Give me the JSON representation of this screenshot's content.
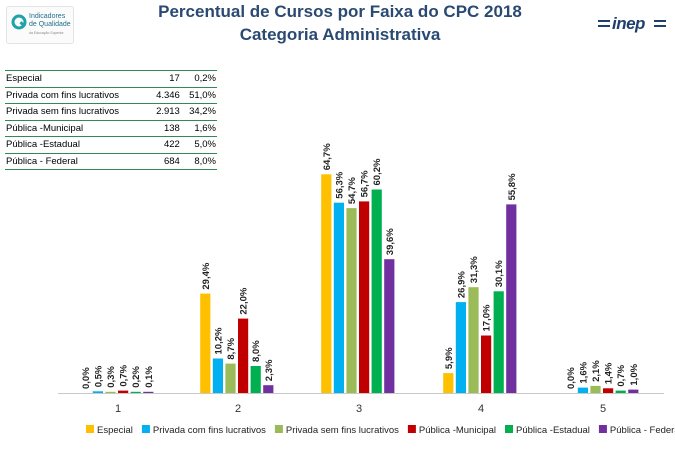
{
  "header": {
    "title_line1": "Percentual de Cursos por Faixa do CPC 2018",
    "title_line2": "Categoria Administrativa",
    "logo_text_line1": "Indicadores",
    "logo_text_line2": "de Qualidade",
    "logo_subtext": "da Educação Superior",
    "inep_logo_text": "inep"
  },
  "table": {
    "rows": [
      {
        "label": "Especial",
        "count": "17",
        "pct": "0,2%"
      },
      {
        "label": "Privada com fins lucrativos",
        "count": "4.346",
        "pct": "51,0%"
      },
      {
        "label": "Privada sem fins lucrativos",
        "count": "2.913",
        "pct": "34,2%"
      },
      {
        "label": "Pública -Municipal",
        "count": "138",
        "pct": "1,6%"
      },
      {
        "label": "Pública -Estadual",
        "count": "422",
        "pct": "5,0%"
      },
      {
        "label": "Pública - Federal",
        "count": "684",
        "pct": "8,0%"
      }
    ]
  },
  "chart_data": {
    "type": "bar",
    "title": "Percentual de Cursos por Faixa do CPC 2018",
    "subtitle": "Categoria Administrativa",
    "xlabel": "",
    "ylabel": "",
    "ylim": [
      0,
      70
    ],
    "categories": [
      "1",
      "2",
      "3",
      "4",
      "5"
    ],
    "legend_position": "bottom",
    "series": [
      {
        "name": "Especial",
        "color": "#FFC000",
        "values": [
          0.0,
          29.4,
          64.7,
          5.9,
          0.0
        ],
        "labels": [
          "0,0%",
          "29,4%",
          "64,7%",
          "5,9%",
          "0,0%"
        ]
      },
      {
        "name": "Privada com fins lucrativos",
        "color": "#00B0F0",
        "values": [
          0.5,
          10.2,
          56.3,
          26.9,
          1.6
        ],
        "labels": [
          "0,5%",
          "10,2%",
          "56,3%",
          "26,9%",
          "1,6%"
        ]
      },
      {
        "name": "Privada sem fins lucrativos",
        "color": "#9BBB59",
        "values": [
          0.3,
          8.7,
          54.7,
          31.3,
          2.1
        ],
        "labels": [
          "0,3%",
          "8,7%",
          "54,7%",
          "31,3%",
          "2,1%"
        ]
      },
      {
        "name": "Pública -Municipal",
        "color": "#C00000",
        "values": [
          0.7,
          22.0,
          56.7,
          17.0,
          1.4
        ],
        "labels": [
          "0,7%",
          "22,0%",
          "56,7%",
          "17,0%",
          "1,4%"
        ]
      },
      {
        "name": "Pública -Estadual",
        "color": "#00B050",
        "values": [
          0.2,
          8.0,
          60.2,
          30.1,
          0.7
        ],
        "labels": [
          "0,2%",
          "8,0%",
          "60,2%",
          "30,1%",
          "0,7%"
        ]
      },
      {
        "name": "Pública - Federal",
        "color": "#7030A0",
        "values": [
          0.1,
          2.3,
          39.6,
          55.8,
          1.0
        ],
        "labels": [
          "0,1%",
          "2,3%",
          "39,6%",
          "55,8%",
          "1,0%"
        ]
      }
    ]
  }
}
